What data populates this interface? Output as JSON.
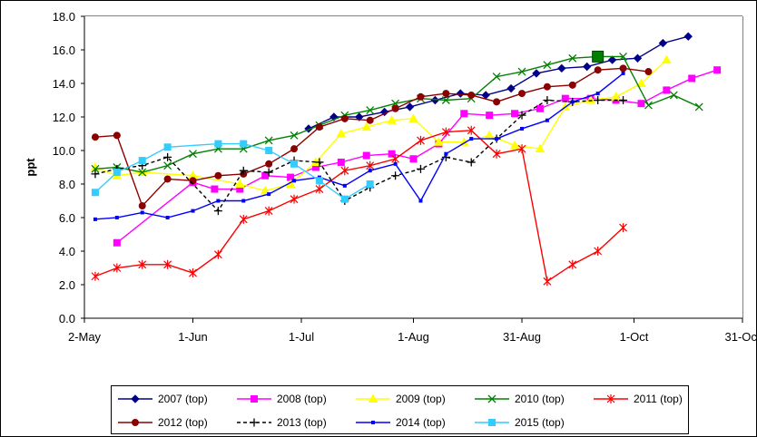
{
  "chart_data": {
    "type": "line",
    "title": "",
    "xlabel": "",
    "ylabel": "ppt",
    "grid": true,
    "legend_position": "bottom",
    "xlim": [
      "2-May",
      "31-Oct"
    ],
    "ylim": [
      0,
      18
    ],
    "x_ticks": [
      {
        "date": "2-May",
        "label": "2-May"
      },
      {
        "date": "1-Jun",
        "label": "1-Jun"
      },
      {
        "date": "1-Jul",
        "label": "1-Jul"
      },
      {
        "date": "1-Aug",
        "label": "1-Aug"
      },
      {
        "date": "31-Aug",
        "label": "31-Aug"
      },
      {
        "date": "1-Oct",
        "label": "1-Oct"
      },
      {
        "date": "31-Oct",
        "label": "31-Oct"
      }
    ],
    "y_ticks": [
      "0.0",
      "2.0",
      "4.0",
      "6.0",
      "8.0",
      "10.0",
      "12.0",
      "14.0",
      "16.0",
      "18.0"
    ],
    "series": [
      {
        "name": "2007 (top)",
        "color": "#00008B",
        "marker": "diamond",
        "dash": false,
        "points": [
          [
            "3-Jul",
            11.3
          ],
          [
            "10-Jul",
            12.0
          ],
          [
            "17-Jul",
            12.0
          ],
          [
            "24-Jul",
            12.3
          ],
          [
            "31-Jul",
            12.6
          ],
          [
            "7-Aug",
            13.0
          ],
          [
            "14-Aug",
            13.4
          ],
          [
            "21-Aug",
            13.3
          ],
          [
            "28-Aug",
            13.7
          ],
          [
            "4-Sep",
            14.6
          ],
          [
            "11-Sep",
            14.9
          ],
          [
            "18-Sep",
            15.0
          ],
          [
            "25-Sep",
            15.4
          ],
          [
            "2-Oct",
            15.5
          ],
          [
            "9-Oct",
            16.4
          ],
          [
            "16-Oct",
            16.8
          ]
        ]
      },
      {
        "name": "2008 (top)",
        "color": "#FF00FF",
        "marker": "square",
        "dash": false,
        "points": [
          [
            "11-May",
            4.5
          ],
          [
            "1-Jun",
            8.1
          ],
          [
            "7-Jun",
            7.7
          ],
          [
            "14-Jun",
            7.7
          ],
          [
            "21-Jun",
            8.5
          ],
          [
            "28-Jun",
            8.4
          ],
          [
            "5-Jul",
            9.0
          ],
          [
            "12-Jul",
            9.3
          ],
          [
            "19-Jul",
            9.7
          ],
          [
            "26-Jul",
            9.8
          ],
          [
            "1-Aug",
            9.5
          ],
          [
            "8-Aug",
            10.4
          ],
          [
            "15-Aug",
            12.2
          ],
          [
            "22-Aug",
            12.1
          ],
          [
            "29-Aug",
            12.2
          ],
          [
            "5-Sep",
            12.5
          ],
          [
            "12-Sep",
            13.1
          ],
          [
            "19-Sep",
            13.1
          ],
          [
            "26-Sep",
            13.0
          ],
          [
            "3-Oct",
            12.8
          ],
          [
            "10-Oct",
            13.6
          ],
          [
            "17-Oct",
            14.3
          ],
          [
            "24-Oct",
            14.8
          ]
        ]
      },
      {
        "name": "2009 (top)",
        "color": "#FFFF00",
        "marker": "triangle",
        "dash": false,
        "points": [
          [
            "5-May",
            9.0
          ],
          [
            "11-May",
            8.5
          ],
          [
            "18-May",
            8.7
          ],
          [
            "1-Jun",
            8.5
          ],
          [
            "14-Jun",
            8.0
          ],
          [
            "21-Jun",
            7.6
          ],
          [
            "28-Jun",
            8.0
          ],
          [
            "5-Jul",
            9.3
          ],
          [
            "12-Jul",
            11.0
          ],
          [
            "19-Jul",
            11.4
          ],
          [
            "26-Jul",
            11.8
          ],
          [
            "1-Aug",
            11.9
          ],
          [
            "8-Aug",
            10.5
          ],
          [
            "15-Aug",
            10.5
          ],
          [
            "22-Aug",
            10.9
          ],
          [
            "29-Aug",
            10.3
          ],
          [
            "5-Sep",
            10.1
          ],
          [
            "12-Sep",
            12.6
          ],
          [
            "19-Sep",
            13.0
          ],
          [
            "26-Sep",
            13.2
          ],
          [
            "3-Oct",
            14.0
          ],
          [
            "10-Oct",
            15.4
          ]
        ]
      },
      {
        "name": "2010 (top)",
        "color": "#008000",
        "marker": "x",
        "dash": false,
        "points": [
          [
            "5-May",
            8.9
          ],
          [
            "11-May",
            9.0
          ],
          [
            "18-May",
            8.7
          ],
          [
            "25-May",
            9.1
          ],
          [
            "1-Jun",
            9.8
          ],
          [
            "8-Jun",
            10.1
          ],
          [
            "15-Jun",
            10.1
          ],
          [
            "22-Jun",
            10.6
          ],
          [
            "29-Jun",
            10.9
          ],
          [
            "6-Jul",
            11.5
          ],
          [
            "13-Jul",
            12.1
          ],
          [
            "20-Jul",
            12.4
          ],
          [
            "27-Jul",
            12.8
          ],
          [
            "3-Aug",
            13.1
          ],
          [
            "10-Aug",
            13.0
          ],
          [
            "17-Aug",
            13.1
          ],
          [
            "24-Aug",
            14.4
          ],
          [
            "31-Aug",
            14.7
          ],
          [
            "7-Sep",
            15.1
          ],
          [
            "14-Sep",
            15.5
          ],
          [
            "21-Sep",
            15.6
          ],
          [
            "28-Sep",
            15.6
          ],
          [
            "5-Oct",
            12.7
          ],
          [
            "12-Oct",
            13.3
          ],
          [
            "19-Oct",
            12.6
          ]
        ]
      },
      {
        "name": "2011 (top)",
        "color": "#FF0000",
        "marker": "asterisk",
        "dash": false,
        "points": [
          [
            "5-May",
            2.5
          ],
          [
            "11-May",
            3.0
          ],
          [
            "18-May",
            3.2
          ],
          [
            "25-May",
            3.2
          ],
          [
            "1-Jun",
            2.7
          ],
          [
            "8-Jun",
            3.8
          ],
          [
            "15-Jun",
            5.9
          ],
          [
            "22-Jun",
            6.4
          ],
          [
            "29-Jun",
            7.1
          ],
          [
            "6-Jul",
            7.7
          ],
          [
            "13-Jul",
            8.8
          ],
          [
            "20-Jul",
            9.1
          ],
          [
            "27-Jul",
            9.5
          ],
          [
            "3-Aug",
            10.6
          ],
          [
            "10-Aug",
            11.1
          ],
          [
            "17-Aug",
            11.2
          ],
          [
            "24-Aug",
            9.8
          ],
          [
            "31-Aug",
            10.1
          ],
          [
            "7-Sep",
            2.2
          ],
          [
            "14-Sep",
            3.2
          ],
          [
            "21-Sep",
            4.0
          ],
          [
            "28-Sep",
            5.4
          ]
        ]
      },
      {
        "name": "2012 (top)",
        "color": "#8B0000",
        "marker": "circle",
        "dash": false,
        "points": [
          [
            "5-May",
            10.8
          ],
          [
            "11-May",
            10.9
          ],
          [
            "18-May",
            6.7
          ],
          [
            "25-May",
            8.3
          ],
          [
            "1-Jun",
            8.2
          ],
          [
            "8-Jun",
            8.5
          ],
          [
            "15-Jun",
            8.6
          ],
          [
            "22-Jun",
            9.2
          ],
          [
            "29-Jun",
            10.1
          ],
          [
            "6-Jul",
            11.4
          ],
          [
            "13-Jul",
            11.9
          ],
          [
            "20-Jul",
            11.8
          ],
          [
            "27-Jul",
            12.5
          ],
          [
            "3-Aug",
            13.2
          ],
          [
            "10-Aug",
            13.4
          ],
          [
            "17-Aug",
            13.3
          ],
          [
            "24-Aug",
            12.9
          ],
          [
            "31-Aug",
            13.4
          ],
          [
            "7-Sep",
            13.8
          ],
          [
            "14-Sep",
            13.9
          ],
          [
            "21-Sep",
            14.8
          ],
          [
            "28-Sep",
            14.9
          ],
          [
            "5-Oct",
            14.7
          ]
        ]
      },
      {
        "name": "2013 (top)",
        "color": "#000000",
        "marker": "plus",
        "dash": true,
        "points": [
          [
            "5-May",
            8.6
          ],
          [
            "11-May",
            8.9
          ],
          [
            "18-May",
            9.1
          ],
          [
            "25-May",
            9.6
          ],
          [
            "8-Jun",
            6.4
          ],
          [
            "15-Jun",
            8.8
          ],
          [
            "22-Jun",
            8.7
          ],
          [
            "29-Jun",
            9.4
          ],
          [
            "6-Jul",
            9.3
          ],
          [
            "13-Jul",
            7.0
          ],
          [
            "20-Jul",
            7.8
          ],
          [
            "27-Jul",
            8.5
          ],
          [
            "3-Aug",
            8.9
          ],
          [
            "10-Aug",
            9.6
          ],
          [
            "17-Aug",
            9.3
          ],
          [
            "24-Aug",
            10.7
          ],
          [
            "31-Aug",
            12.1
          ],
          [
            "7-Sep",
            13.0
          ],
          [
            "14-Sep",
            12.9
          ],
          [
            "21-Sep",
            13.0
          ],
          [
            "28-Sep",
            13.0
          ]
        ]
      },
      {
        "name": "2014 (top)",
        "color": "#0000FF",
        "marker": "smallsquare",
        "dash": false,
        "points": [
          [
            "5-May",
            5.9
          ],
          [
            "11-May",
            6.0
          ],
          [
            "18-May",
            6.3
          ],
          [
            "25-May",
            6.0
          ],
          [
            "1-Jun",
            6.4
          ],
          [
            "8-Jun",
            7.0
          ],
          [
            "15-Jun",
            7.0
          ],
          [
            "22-Jun",
            7.4
          ],
          [
            "29-Jun",
            8.2
          ],
          [
            "6-Jul",
            8.4
          ],
          [
            "13-Jul",
            7.9
          ],
          [
            "20-Jul",
            8.8
          ],
          [
            "27-Jul",
            9.2
          ],
          [
            "3-Aug",
            7.0
          ],
          [
            "10-Aug",
            9.8
          ],
          [
            "17-Aug",
            10.7
          ],
          [
            "24-Aug",
            10.7
          ],
          [
            "31-Aug",
            11.3
          ],
          [
            "7-Sep",
            11.8
          ],
          [
            "14-Sep",
            12.9
          ],
          [
            "21-Sep",
            13.4
          ],
          [
            "28-Sep",
            14.6
          ]
        ]
      },
      {
        "name": "2015 (top)",
        "color": "#33CCFF",
        "marker": "square",
        "dash": false,
        "points": [
          [
            "5-May",
            7.5
          ],
          [
            "11-May",
            8.7
          ],
          [
            "18-May",
            9.4
          ],
          [
            "25-May",
            10.2
          ],
          [
            "8-Jun",
            10.4
          ],
          [
            "15-Jun",
            10.4
          ],
          [
            "22-Jun",
            10.0
          ],
          [
            "29-Jun",
            9.2
          ],
          [
            "6-Jul",
            8.2
          ],
          [
            "13-Jul",
            7.1
          ],
          [
            "20-Jul",
            8.0
          ]
        ]
      }
    ],
    "annotations": [
      {
        "type": "marker",
        "shape": "large-square",
        "color": "#008000",
        "date": "21-Sep",
        "y": 15.6
      }
    ]
  }
}
